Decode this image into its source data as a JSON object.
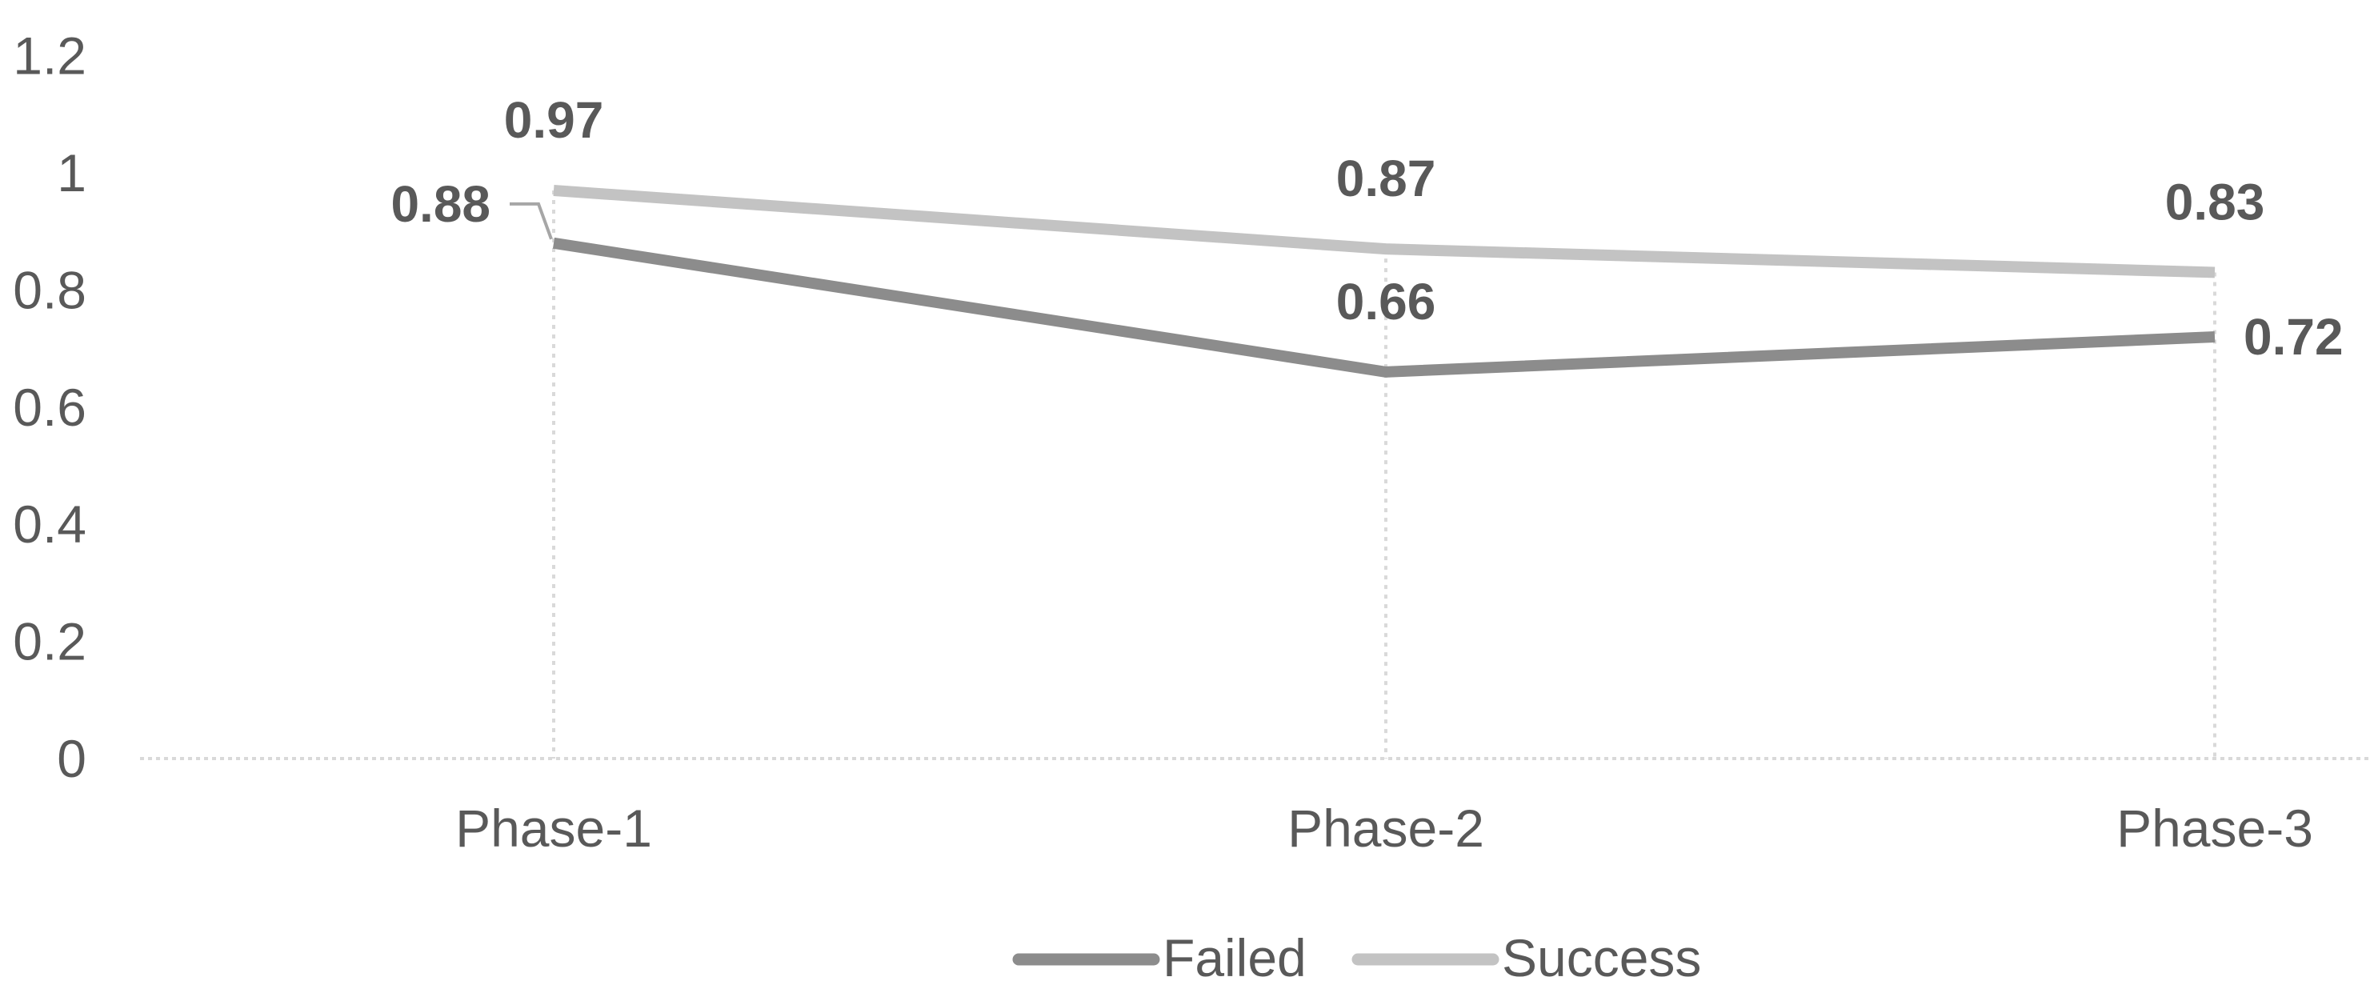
{
  "chart_data": {
    "type": "line",
    "title": "",
    "xlabel": "",
    "ylabel": "",
    "categories": [
      "Phase-1",
      "Phase-2",
      "Phase-3"
    ],
    "series": [
      {
        "name": "Failed",
        "values": [
          0.88,
          0.66,
          0.72
        ],
        "color": "#8c8c8c",
        "data_labels": [
          "0.88",
          "0.66",
          "0.72"
        ],
        "label_placement": [
          "left-leader",
          "above",
          "right"
        ]
      },
      {
        "name": "Success",
        "values": [
          0.97,
          0.87,
          0.83
        ],
        "color": "#c3c3c3",
        "data_labels": [
          "0.97",
          "0.87",
          "0.83"
        ],
        "label_placement": [
          "above",
          "above",
          "above"
        ]
      }
    ],
    "y_axis": {
      "min": 0,
      "max": 1.2,
      "step": 0.2,
      "tick_labels": [
        "0",
        "0.2",
        "0.4",
        "0.6",
        "0.8",
        "1",
        "1.2"
      ]
    },
    "x_axis": {
      "tick_labels": [
        "Phase-1",
        "Phase-2",
        "Phase-3"
      ]
    },
    "legend": {
      "position": "bottom-center",
      "entries": [
        "Failed",
        "Success"
      ]
    },
    "grid": {
      "horizontal": false,
      "vertical_drop_lines": true,
      "color": "#d9d9d9"
    },
    "axis_color": "#d9d9d9",
    "text_color": "#595959",
    "background_color": "#ffffff"
  }
}
